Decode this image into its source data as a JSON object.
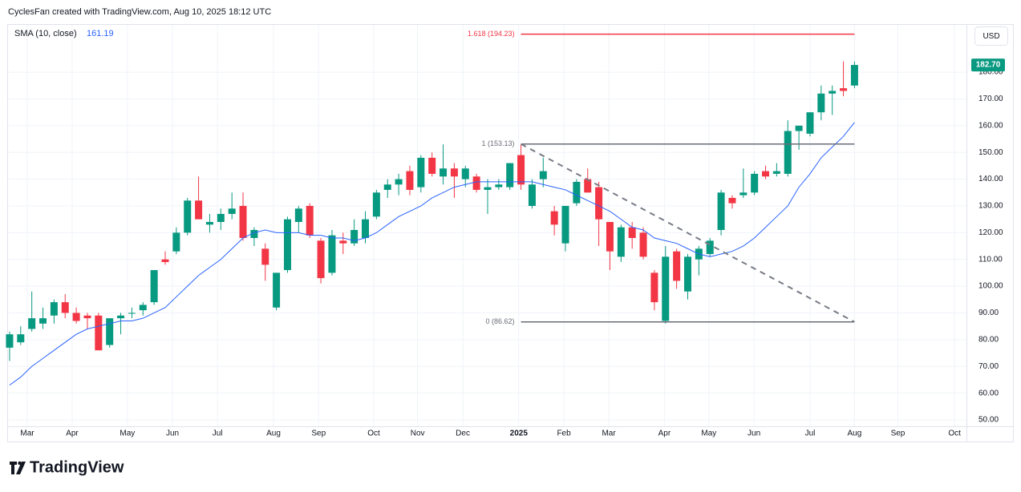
{
  "chart_data": {
    "type": "candlestick",
    "title": "CyclesFan created with TradingView.com, Aug 10, 2025 18:12 UTC",
    "currency": "USD",
    "up_color": "#089981",
    "down_color": "#f23645",
    "grid": true,
    "open": [
      77,
      79,
      84,
      86,
      89,
      94,
      90,
      89,
      89,
      78,
      88,
      90,
      91,
      94,
      110,
      113,
      120,
      132,
      123,
      124,
      127,
      130,
      118,
      114,
      92,
      106,
      124,
      130,
      117,
      105,
      117,
      116,
      118,
      126,
      136,
      138,
      143,
      137,
      148,
      141,
      144,
      140,
      141,
      136,
      137,
      137,
      149,
      130,
      140,
      128,
      116,
      131,
      140,
      137,
      124,
      111,
      122,
      120,
      105,
      87,
      113,
      98,
      110,
      112,
      121,
      133,
      134,
      135,
      143,
      142,
      142,
      158,
      157,
      165,
      172,
      174,
      175
    ],
    "high": [
      83,
      85,
      98,
      92,
      95,
      97,
      92,
      90,
      90,
      88,
      90,
      92,
      94,
      106,
      113,
      122,
      133,
      141,
      127,
      129,
      135,
      135,
      122,
      116,
      105,
      126,
      130,
      131,
      118,
      121,
      120,
      125,
      128,
      136,
      140,
      142,
      145,
      149,
      150,
      153,
      146,
      145,
      142,
      140,
      140,
      146,
      153,
      140,
      148,
      130,
      130,
      140,
      144,
      139,
      124,
      123,
      124,
      122,
      106,
      115,
      114,
      112,
      115,
      118,
      136,
      134,
      144,
      143,
      145,
      146,
      162,
      160,
      165,
      175,
      175,
      184,
      184
    ],
    "low": [
      72,
      78,
      83,
      84,
      86,
      88,
      86,
      84,
      76,
      77,
      82,
      88,
      89,
      93,
      108,
      112,
      119,
      125,
      120,
      121,
      125,
      117,
      115,
      102,
      91,
      105,
      120,
      118,
      101,
      104,
      112,
      115,
      116,
      125,
      133,
      134,
      134,
      135,
      141,
      138,
      133,
      137,
      135,
      127,
      136,
      136,
      136,
      129,
      137,
      119,
      113,
      130,
      135,
      115,
      106,
      109,
      114,
      110,
      91,
      86,
      99,
      95,
      104,
      111,
      119,
      129,
      133,
      134,
      140,
      141,
      141,
      151,
      156,
      162,
      164,
      171,
      174
    ],
    "close": [
      82,
      82,
      88,
      88,
      94,
      90,
      87,
      88,
      76,
      88,
      89,
      90,
      93,
      106,
      109,
      120,
      132,
      125,
      124,
      127,
      129,
      118,
      121,
      108,
      105,
      125,
      129,
      119,
      103,
      119,
      116,
      121,
      125,
      135,
      138,
      140,
      136,
      148,
      142,
      144,
      141,
      144,
      136,
      137,
      138,
      146,
      138,
      138,
      143,
      123,
      130,
      139,
      135,
      125,
      113,
      122,
      118,
      111,
      94,
      111,
      102,
      111,
      114,
      117,
      135,
      131,
      135,
      142,
      141,
      143,
      158,
      160,
      165,
      172,
      173,
      173,
      182.7
    ],
    "last_price_label": "182.70",
    "sma_label": "SMA (10, close)",
    "sma_color": "#2962ff",
    "sma": [
      63,
      66,
      70,
      73,
      76,
      79,
      82,
      84,
      85,
      86,
      87,
      87,
      88,
      90,
      92,
      96,
      100,
      104,
      107,
      110,
      114,
      118,
      120,
      121,
      120,
      120,
      120,
      119,
      119,
      118,
      118,
      117,
      118,
      120,
      123,
      126,
      128,
      130,
      133,
      135,
      137,
      138,
      139,
      139,
      139,
      139,
      139,
      139,
      138,
      137,
      136,
      134,
      132,
      130,
      128,
      125,
      122,
      121,
      118,
      117,
      116,
      114,
      112,
      111,
      112,
      113,
      115,
      118,
      122,
      126,
      130,
      137,
      142,
      148,
      152,
      156,
      161.19
    ],
    "fib_levels": [
      {
        "label": "1.618 (194.23)",
        "value": 194.23,
        "color": "#f23645"
      },
      {
        "label": "1 (153.13)",
        "value": 153.13,
        "color": "#6a6d78"
      },
      {
        "label": "0 (86.62)",
        "value": 86.62,
        "color": "#6a6d78"
      }
    ],
    "fib_start": 46,
    "fib_end": 76,
    "trendline": {
      "x": [
        46,
        76
      ],
      "y": [
        153.13,
        86.62
      ],
      "color": "#787b86"
    },
    "xlim": [
      -0.14,
      86.07
    ],
    "xticks": [
      {
        "value": 1.59,
        "label": "Mar"
      },
      {
        "value": 5.63,
        "label": "Apr"
      },
      {
        "value": 10.6,
        "label": "May"
      },
      {
        "value": 14.65,
        "label": "Jun"
      },
      {
        "value": 18.7,
        "label": "Jul"
      },
      {
        "value": 23.74,
        "label": "Aug"
      },
      {
        "value": 27.8,
        "label": "Sep"
      },
      {
        "value": 32.76,
        "label": "Oct"
      },
      {
        "value": 36.7,
        "label": "Nov"
      },
      {
        "value": 40.77,
        "label": "Dec"
      },
      {
        "value": 45.8,
        "label": "2025"
      },
      {
        "value": 49.86,
        "label": "Feb"
      },
      {
        "value": 53.9,
        "label": "Mar"
      },
      {
        "value": 58.9,
        "label": "Apr"
      },
      {
        "value": 62.9,
        "label": "May"
      },
      {
        "value": 66.96,
        "label": "Jun"
      },
      {
        "value": 72.0,
        "label": "Jul"
      },
      {
        "value": 76.0,
        "label": "Aug"
      },
      {
        "value": 79.9,
        "label": "Sep"
      },
      {
        "value": 85.0,
        "label": "Oct"
      }
    ],
    "ylim": [
      47.6,
      198
    ],
    "yticks": [
      {
        "value": 50,
        "label": "50.00"
      },
      {
        "value": 60,
        "label": "60.00"
      },
      {
        "value": 70,
        "label": "70.00"
      },
      {
        "value": 80,
        "label": "80.00"
      },
      {
        "value": 90,
        "label": "90.00"
      },
      {
        "value": 100,
        "label": "100.00"
      },
      {
        "value": 110,
        "label": "110.00"
      },
      {
        "value": 120,
        "label": "120.00"
      },
      {
        "value": 130,
        "label": "130.00"
      },
      {
        "value": 140,
        "label": "140.00"
      },
      {
        "value": 150,
        "label": "150.00"
      },
      {
        "value": 160,
        "label": "160.00"
      },
      {
        "value": 170,
        "label": "170.00"
      },
      {
        "value": 180,
        "label": "180.00"
      }
    ]
  },
  "footer": {
    "brand": "TradingView"
  }
}
